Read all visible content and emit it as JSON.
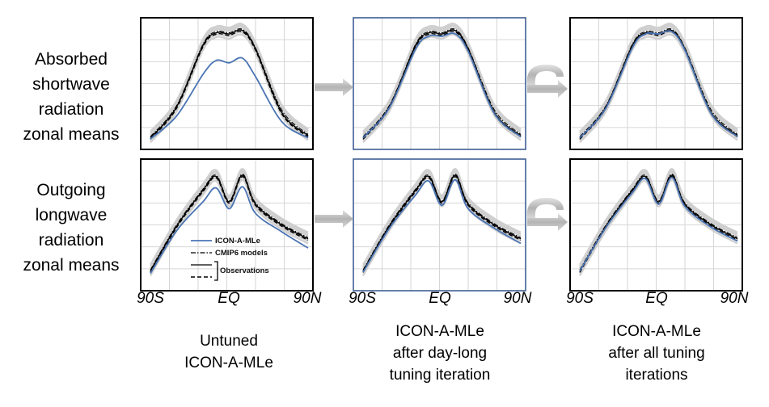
{
  "row_labels": [
    [
      "Absorbed",
      "shortwave",
      "radiation",
      "zonal means"
    ],
    [
      "Outgoing",
      "longwave",
      "radiation",
      "zonal means"
    ]
  ],
  "column_labels": [
    [
      "Untuned",
      "ICON-A-MLe"
    ],
    [
      "ICON-A-MLe",
      "after day-long",
      "tuning iteration"
    ],
    [
      "ICON-A-MLe",
      "after all tuning",
      "iterations"
    ]
  ],
  "x_tick_labels": [
    "90S",
    "EQ",
    "90N"
  ],
  "legend": {
    "icon": "ICON-A-MLe",
    "cmip6": "CMIP6 models",
    "obs": "Observations"
  },
  "colors": {
    "icon": "#4a74b4",
    "cmip6_band": "#cfcfcf",
    "observations": "#000000",
    "arrow": "#bdbdbd",
    "grid": "#d6d6d6",
    "highlight_border": "#3f5f94"
  },
  "chart_data": [
    {
      "type": "line",
      "row": 0,
      "col": 0,
      "ylim": [
        0,
        1
      ],
      "x": [
        -90,
        -60,
        -30,
        -15,
        0,
        15,
        30,
        60,
        90
      ],
      "xticks": [
        "90S",
        "EQ",
        "90N"
      ],
      "series": [
        {
          "name": "ICON-A-MLe",
          "values": [
            0.02,
            0.22,
            0.58,
            0.7,
            0.68,
            0.72,
            0.56,
            0.17,
            0.03
          ]
        },
        {
          "name": "Observations",
          "values": [
            0.03,
            0.3,
            0.83,
            0.94,
            0.93,
            0.96,
            0.8,
            0.25,
            0.05
          ]
        },
        {
          "name": "CMIP6 models",
          "values": [
            0.04,
            0.31,
            0.84,
            0.95,
            0.94,
            0.97,
            0.81,
            0.27,
            0.06
          ]
        }
      ]
    },
    {
      "type": "line",
      "row": 0,
      "col": 1,
      "ylim": [
        0,
        1
      ],
      "x": [
        -90,
        -60,
        -30,
        -15,
        0,
        15,
        30,
        60,
        90
      ],
      "xticks": [
        "90S",
        "EQ",
        "90N"
      ],
      "series": [
        {
          "name": "ICON-A-MLe",
          "values": [
            0.03,
            0.29,
            0.8,
            0.91,
            0.91,
            0.93,
            0.78,
            0.24,
            0.04
          ]
        },
        {
          "name": "Observations",
          "values": [
            0.03,
            0.3,
            0.83,
            0.94,
            0.93,
            0.96,
            0.8,
            0.25,
            0.05
          ]
        },
        {
          "name": "CMIP6 models",
          "values": [
            0.04,
            0.31,
            0.84,
            0.95,
            0.94,
            0.97,
            0.81,
            0.27,
            0.06
          ]
        }
      ]
    },
    {
      "type": "line",
      "row": 0,
      "col": 2,
      "ylim": [
        0,
        1
      ],
      "x": [
        -90,
        -60,
        -30,
        -15,
        0,
        15,
        30,
        60,
        90
      ],
      "xticks": [
        "90S",
        "EQ",
        "90N"
      ],
      "series": [
        {
          "name": "ICON-A-MLe",
          "values": [
            0.03,
            0.29,
            0.81,
            0.93,
            0.93,
            0.95,
            0.79,
            0.24,
            0.04
          ]
        },
        {
          "name": "Observations",
          "values": [
            0.03,
            0.3,
            0.83,
            0.94,
            0.93,
            0.96,
            0.8,
            0.25,
            0.05
          ]
        },
        {
          "name": "CMIP6 models",
          "values": [
            0.04,
            0.31,
            0.84,
            0.95,
            0.94,
            0.97,
            0.81,
            0.27,
            0.06
          ]
        }
      ]
    },
    {
      "type": "line",
      "row": 1,
      "col": 0,
      "ylim": [
        0,
        1
      ],
      "x": [
        -90,
        -60,
        -30,
        -15,
        0,
        15,
        30,
        60,
        90
      ],
      "xticks": [
        "90S",
        "EQ",
        "90N"
      ],
      "series": [
        {
          "name": "ICON-A-MLe",
          "values": [
            0.08,
            0.45,
            0.7,
            0.82,
            0.64,
            0.83,
            0.6,
            0.44,
            0.3
          ]
        },
        {
          "name": "Observations",
          "values": [
            0.1,
            0.49,
            0.8,
            0.92,
            0.7,
            0.93,
            0.68,
            0.5,
            0.38
          ]
        },
        {
          "name": "CMIP6 models",
          "values": [
            0.11,
            0.5,
            0.81,
            0.93,
            0.71,
            0.94,
            0.69,
            0.51,
            0.39
          ]
        }
      ]
    },
    {
      "type": "line",
      "row": 1,
      "col": 1,
      "ylim": [
        0,
        1
      ],
      "x": [
        -90,
        -60,
        -30,
        -15,
        0,
        15,
        30,
        60,
        90
      ],
      "xticks": [
        "90S",
        "EQ",
        "90N"
      ],
      "series": [
        {
          "name": "ICON-A-MLe",
          "values": [
            0.09,
            0.47,
            0.76,
            0.88,
            0.67,
            0.89,
            0.64,
            0.47,
            0.34
          ]
        },
        {
          "name": "Observations",
          "values": [
            0.1,
            0.49,
            0.8,
            0.92,
            0.7,
            0.93,
            0.68,
            0.5,
            0.38
          ]
        },
        {
          "name": "CMIP6 models",
          "values": [
            0.11,
            0.5,
            0.81,
            0.93,
            0.71,
            0.94,
            0.69,
            0.51,
            0.39
          ]
        }
      ]
    },
    {
      "type": "line",
      "row": 1,
      "col": 2,
      "ylim": [
        0,
        1
      ],
      "x": [
        -90,
        -60,
        -30,
        -15,
        0,
        15,
        30,
        60,
        90
      ],
      "xticks": [
        "90S",
        "EQ",
        "90N"
      ],
      "series": [
        {
          "name": "ICON-A-MLe",
          "values": [
            0.1,
            0.48,
            0.78,
            0.9,
            0.68,
            0.91,
            0.66,
            0.48,
            0.36
          ]
        },
        {
          "name": "Observations",
          "values": [
            0.1,
            0.49,
            0.8,
            0.92,
            0.7,
            0.93,
            0.68,
            0.5,
            0.38
          ]
        },
        {
          "name": "CMIP6 models",
          "values": [
            0.11,
            0.5,
            0.81,
            0.93,
            0.71,
            0.94,
            0.69,
            0.51,
            0.39
          ]
        }
      ]
    }
  ]
}
